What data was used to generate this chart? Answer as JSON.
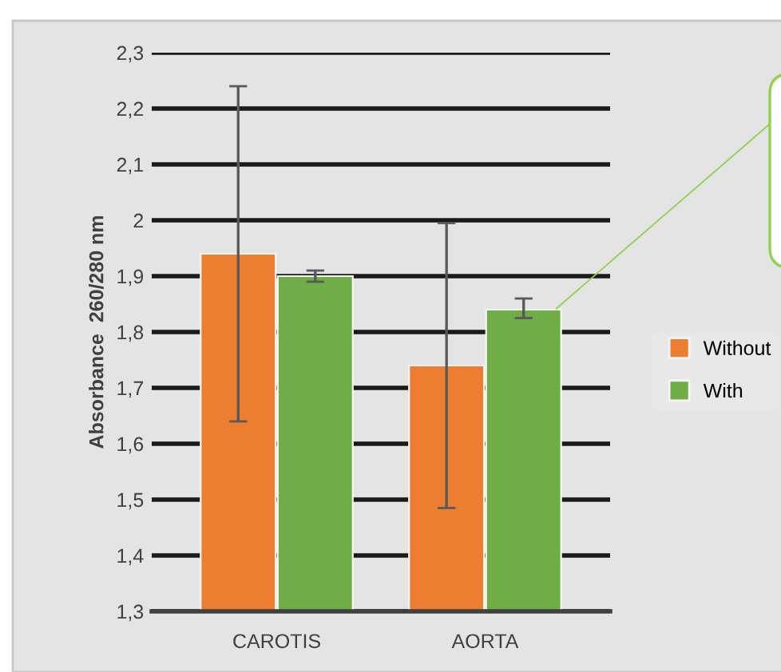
{
  "chart_data": {
    "type": "bar",
    "ylabel": "Absorbance  260/280 nm",
    "categories": [
      "CAROTIS",
      "AORTA"
    ],
    "series": [
      {
        "name": "Without",
        "color": "#ed7d31",
        "values": [
          1.94,
          1.74
        ],
        "errors": [
          0.3,
          0.255
        ]
      },
      {
        "name": "With",
        "color": "#70ad47",
        "values": [
          1.9,
          1.84
        ],
        "errors": [
          0.01,
          [
            1.825,
            1.86
          ]
        ]
      }
    ],
    "ylim": [
      1.3,
      2.3
    ],
    "yticks": [
      {
        "value": 1.3,
        "label": "1,3"
      },
      {
        "value": 1.4,
        "label": "1,4"
      },
      {
        "value": 1.5,
        "label": "1,5"
      },
      {
        "value": 1.6,
        "label": "1,6"
      },
      {
        "value": 1.7,
        "label": "1,7"
      },
      {
        "value": 1.8,
        "label": "1,8"
      },
      {
        "value": 1.9,
        "label": "1,9"
      },
      {
        "value": 2,
        "label": "2"
      },
      {
        "value": 2.1,
        "label": "2,1"
      },
      {
        "value": 2.2,
        "label": "2,2"
      },
      {
        "value": 2.3,
        "label": "2,3"
      }
    ],
    "grid": "y",
    "legend": "right"
  }
}
